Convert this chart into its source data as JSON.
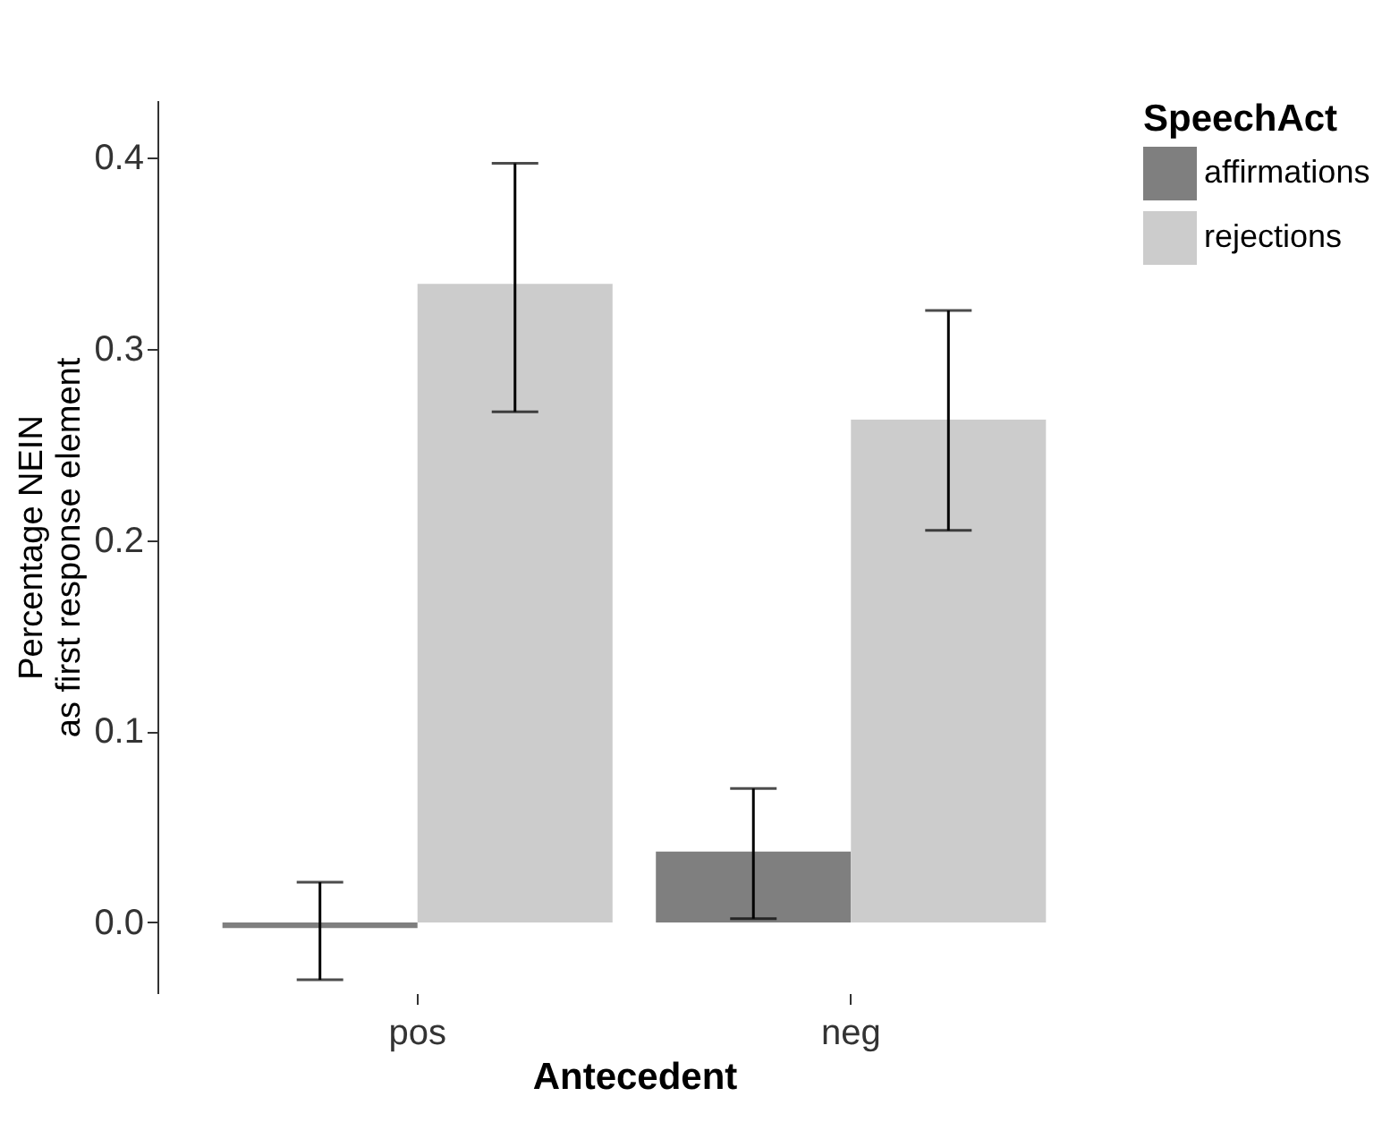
{
  "chart_data": {
    "type": "bar",
    "xlabel": "Antecedent",
    "ylabel": "Percentage NEIN\nas first response element",
    "legend_title": "SpeechAct",
    "legend": "right",
    "categories": [
      "pos",
      "neg"
    ],
    "series": [
      {
        "name": "affirmations",
        "color": "#7f7f7f",
        "values": [
          -0.003,
          0.037
        ],
        "errors": [
          [
            -0.03,
            0.021
          ],
          [
            0.002,
            0.07
          ]
        ]
      },
      {
        "name": "rejections",
        "color": "#cccccc",
        "values": [
          0.334,
          0.263
        ],
        "errors": [
          [
            0.267,
            0.397
          ],
          [
            0.205,
            0.32
          ]
        ]
      }
    ],
    "ylim": [
      -0.037,
      0.43
    ],
    "yticks": [
      {
        "value": 0,
        "label": "0.0"
      },
      0.1,
      0.2,
      0.3,
      0.4
    ]
  }
}
